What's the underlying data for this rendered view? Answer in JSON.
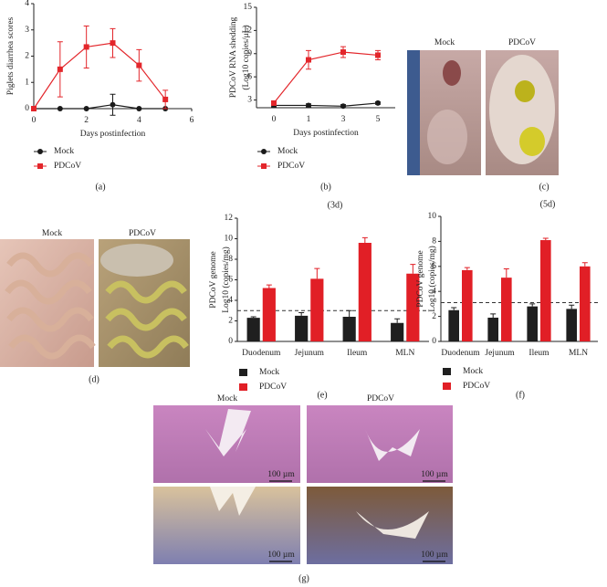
{
  "chart_data": [
    {
      "type": "line",
      "panel_label": "(a)",
      "y_label": [
        "Piglets diarrhea scores"
      ],
      "x_label": "Days postinfection",
      "x": [
        0,
        1,
        2,
        3,
        4,
        5
      ],
      "xlim": [
        0,
        6
      ],
      "xticks": [
        0,
        2,
        4,
        6
      ],
      "ylim": [
        0,
        4
      ],
      "yticks": [
        0,
        1,
        2,
        3,
        4
      ],
      "series": [
        {
          "name": "Mock",
          "color": "#1a1a1a",
          "marker": "circle",
          "values": [
            0,
            0,
            0,
            0.15,
            0,
            0
          ],
          "errors": [
            0,
            0,
            0,
            0.4,
            0,
            0
          ]
        },
        {
          "name": "PDCoV",
          "color": "#e3262b",
          "marker": "square",
          "values": [
            0,
            1.5,
            2.35,
            2.5,
            1.65,
            0.35
          ],
          "errors": [
            0,
            1.05,
            0.8,
            0.55,
            0.6,
            0.35
          ]
        }
      ]
    },
    {
      "type": "line",
      "panel_label": "(b)",
      "annotation": "(3d)",
      "y_label": [
        "PDCoV RNA shedding",
        "(Log10 copies/μL)"
      ],
      "x_label": "Days postinfection",
      "categories": [
        "0",
        "1",
        "3",
        "5"
      ],
      "ylim": [
        2,
        15
      ],
      "yticks": [
        3,
        6,
        9,
        12,
        15
      ],
      "series": [
        {
          "name": "Mock",
          "color": "#1a1a1a",
          "marker": "circle",
          "values": [
            2.3,
            2.3,
            2.2,
            2.6
          ],
          "errors": [
            0.2,
            0.2,
            0.2,
            0.15
          ]
        },
        {
          "name": "PDCoV",
          "color": "#e3262b",
          "marker": "square",
          "values": [
            2.6,
            8.2,
            9.2,
            8.8
          ],
          "errors": [
            0.2,
            1.2,
            0.7,
            0.6
          ]
        }
      ]
    },
    {
      "type": "bar",
      "panel_label": "(e)",
      "y_label": [
        "PDCoV genome",
        "Log10 (copies/mg)"
      ],
      "categories": [
        "Duodenum",
        "Jejunum",
        "Ileum",
        "MLN"
      ],
      "ylim": [
        0,
        12
      ],
      "yticks": [
        0,
        2,
        4,
        6,
        8,
        10,
        12
      ],
      "threshold": 3,
      "series": [
        {
          "name": "Mock",
          "color": "#1f1f1f",
          "values": [
            2.3,
            2.5,
            2.4,
            1.8
          ],
          "errors": [
            0.1,
            0.3,
            0.6,
            0.4
          ]
        },
        {
          "name": "PDCoV",
          "color": "#e11f26",
          "values": [
            5.2,
            6.1,
            9.6,
            6.6
          ],
          "errors": [
            0.3,
            1.0,
            0.5,
            0.9
          ]
        }
      ]
    },
    {
      "type": "bar",
      "panel_label": "(f)",
      "y_label": [
        "PDCoV genome",
        "Log10 (copies/mg)"
      ],
      "categories": [
        "Duodenum",
        "Jejunum",
        "Ileum",
        "MLN"
      ],
      "ylim": [
        0,
        10
      ],
      "yticks": [
        0,
        2,
        4,
        6,
        8,
        10
      ],
      "threshold": 3.1,
      "series": [
        {
          "name": "Mock",
          "color": "#1f1f1f",
          "values": [
            2.5,
            1.9,
            2.8,
            2.6
          ],
          "errors": [
            0.2,
            0.3,
            0.2,
            0.3
          ]
        },
        {
          "name": "PDCoV",
          "color": "#e11f26",
          "values": [
            5.7,
            5.1,
            8.1,
            6.0
          ],
          "errors": [
            0.2,
            0.7,
            0.15,
            0.3
          ]
        }
      ]
    }
  ],
  "figure": {
    "c": {
      "labels": [
        "Mock",
        "PDCoV"
      ],
      "panel_label": "(c)",
      "annotation": "(5d)"
    },
    "d": {
      "labels": [
        "Mock",
        "PDCoV"
      ],
      "panel_label": "(d)"
    },
    "g": {
      "labels": [
        "Mock",
        "PDCoV"
      ],
      "scale_bars": [
        "100 µm",
        "100 µm",
        "100 µm",
        "100 µm"
      ],
      "panel_label": "(g)"
    }
  }
}
